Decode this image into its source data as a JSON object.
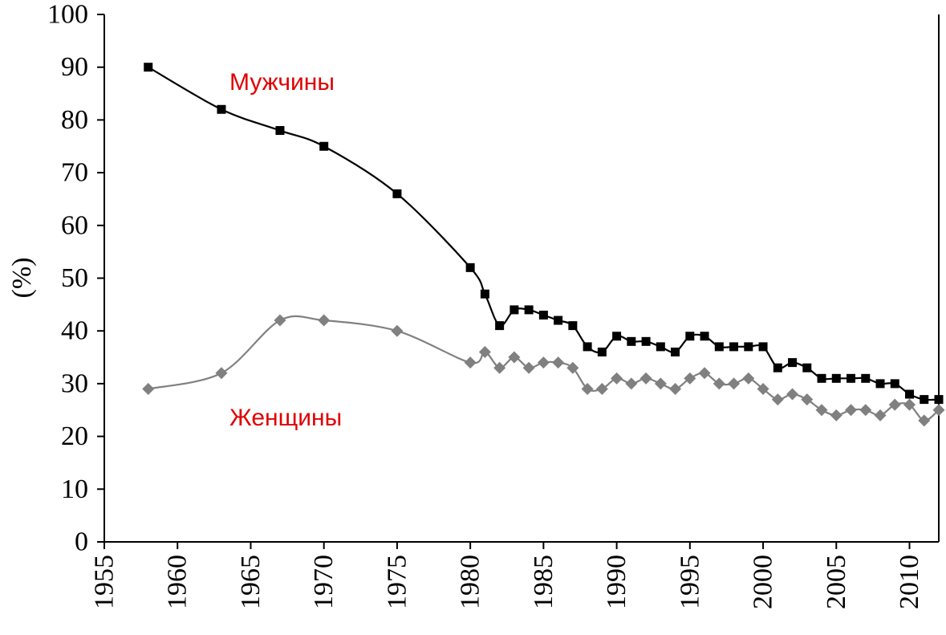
{
  "chart_data": {
    "type": "line",
    "title": "",
    "xlabel": "",
    "ylabel": "(%)",
    "xlim": [
      1955,
      2012
    ],
    "ylim": [
      0,
      100
    ],
    "x_ticks": [
      1955,
      1960,
      1965,
      1970,
      1975,
      1980,
      1985,
      1990,
      1995,
      2000,
      2005,
      2010
    ],
    "y_ticks": [
      0,
      10,
      20,
      30,
      40,
      50,
      60,
      70,
      80,
      90,
      100
    ],
    "grid": false,
    "series": [
      {
        "name": "Мужчины",
        "color": "#000000",
        "marker": "square",
        "x": [
          1958,
          1963,
          1967,
          1970,
          1975,
          1980,
          1981,
          1982,
          1983,
          1984,
          1985,
          1986,
          1987,
          1988,
          1989,
          1990,
          1991,
          1992,
          1993,
          1994,
          1995,
          1996,
          1997,
          1998,
          1999,
          2000,
          2001,
          2002,
          2003,
          2004,
          2005,
          2006,
          2007,
          2008,
          2009,
          2010,
          2011,
          2012
        ],
        "y": [
          90,
          82,
          78,
          75,
          66,
          52,
          47,
          41,
          44,
          44,
          43,
          42,
          41,
          37,
          36,
          39,
          38,
          38,
          37,
          36,
          39,
          39,
          37,
          37,
          37,
          37,
          33,
          34,
          33,
          31,
          31,
          31,
          31,
          30,
          30,
          28,
          27,
          27
        ]
      },
      {
        "name": "Женщины",
        "color": "#808080",
        "marker": "diamond",
        "x": [
          1958,
          1963,
          1967,
          1970,
          1975,
          1980,
          1981,
          1982,
          1983,
          1984,
          1985,
          1986,
          1987,
          1988,
          1989,
          1990,
          1991,
          1992,
          1993,
          1994,
          1995,
          1996,
          1997,
          1998,
          1999,
          2000,
          2001,
          2002,
          2003,
          2004,
          2005,
          2006,
          2007,
          2008,
          2009,
          2010,
          2011,
          2012
        ],
        "y": [
          29,
          32,
          42,
          42,
          40,
          34,
          36,
          33,
          35,
          33,
          34,
          34,
          33,
          29,
          29,
          31,
          30,
          31,
          30,
          29,
          31,
          32,
          30,
          30,
          31,
          29,
          27,
          28,
          27,
          25,
          24,
          25,
          25,
          24,
          26,
          26,
          23,
          25
        ]
      }
    ],
    "annotations": [
      {
        "text": "Мужчины",
        "color": "#e00000",
        "series": 0
      },
      {
        "text": "Женщины",
        "color": "#e00000",
        "series": 1
      }
    ]
  }
}
